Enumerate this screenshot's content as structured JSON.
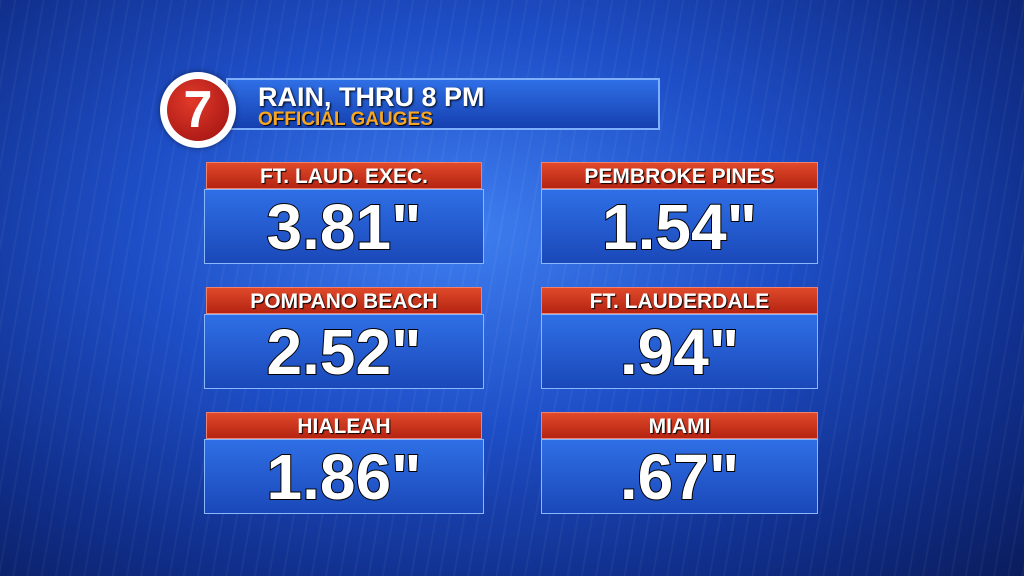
{
  "header": {
    "logo": "7",
    "title": "RAIN, THRU 8 PM",
    "subtitle": "OFFICIAL GAUGES"
  },
  "gauges": [
    {
      "location": "FT. LAUD. EXEC.",
      "amount": "3.81\""
    },
    {
      "location": "PEMBROKE PINES",
      "amount": "1.54\""
    },
    {
      "location": "POMPANO BEACH",
      "amount": "2.52\""
    },
    {
      "location": "FT. LAUDERDALE",
      "amount": ".94\""
    },
    {
      "location": "HIALEAH",
      "amount": "1.86\""
    },
    {
      "location": "MIAMI",
      "amount": ".67\""
    }
  ]
}
